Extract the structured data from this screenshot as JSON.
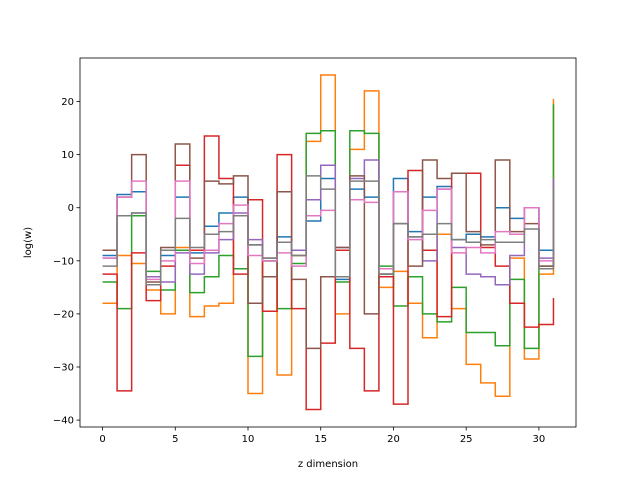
{
  "chart_data": {
    "type": "line",
    "step": "post",
    "title": "",
    "xlabel": "z dimension",
    "ylabel": "log(w)",
    "xlim": [
      -1.55,
      32.55
    ],
    "ylim": [
      -41.3,
      28.2
    ],
    "xticks": [
      0,
      5,
      10,
      15,
      20,
      25,
      30
    ],
    "yticks": [
      -40,
      -30,
      -20,
      -10,
      0,
      10,
      20
    ],
    "grid": false,
    "legend": "none",
    "x": [
      0,
      1,
      2,
      3,
      4,
      5,
      6,
      7,
      8,
      9,
      10,
      11,
      12,
      13,
      14,
      15,
      16,
      17,
      18,
      19,
      20,
      21,
      22,
      23,
      24,
      25,
      26,
      27,
      28,
      29,
      30,
      31
    ],
    "series": [
      {
        "color": "#1f77b4",
        "values": [
          -9,
          2.5,
          3,
          -13,
          -9,
          2,
          -8.5,
          -3.5,
          -1,
          2,
          -7,
          -10,
          -5.5,
          -9,
          -2.5,
          5.5,
          -13.5,
          3.5,
          2,
          -12.5,
          5.5,
          -4.5,
          2,
          4,
          -6,
          -5,
          -5.5,
          0,
          -2,
          0,
          -8,
          2
        ]
      },
      {
        "color": "#ff7f0e",
        "values": [
          -18,
          -9,
          -10.5,
          -15.5,
          -20,
          -7.5,
          -20.5,
          -18.5,
          -18,
          -1.5,
          -35,
          -9.5,
          -31.5,
          -9,
          12.5,
          25,
          -20,
          11,
          22,
          -15,
          -12,
          -18,
          -24.5,
          -5,
          -19,
          -29.5,
          -33,
          -35.5,
          -9.5,
          -28.5,
          -12.5,
          20.5
        ]
      },
      {
        "color": "#2ca02c",
        "values": [
          -14,
          -19,
          -1.5,
          -12,
          -15.5,
          -8,
          -16,
          -13,
          -9,
          -11.5,
          -28,
          -10,
          -19,
          -10.5,
          14,
          14.5,
          -14,
          14.5,
          14,
          -11,
          -18.5,
          -13,
          -20,
          -21.5,
          -15,
          -23.5,
          -23.5,
          -26,
          -13.5,
          -26.5,
          -11,
          19.5
        ]
      },
      {
        "color": "#d62728",
        "values": [
          -12.5,
          -34.5,
          -8.5,
          -17.5,
          -11,
          8,
          -8,
          13.5,
          5.5,
          -12.5,
          1.5,
          -19.5,
          10,
          -19,
          -38,
          -25.5,
          -8,
          -26.5,
          -34.5,
          -13,
          -37,
          7,
          -8,
          -20.5,
          6.5,
          6.5,
          -7.5,
          -11,
          -18,
          -22.5,
          -22,
          -17
        ]
      },
      {
        "color": "#9467bd",
        "values": [
          -9.5,
          -1.5,
          -1,
          -13,
          -14,
          -8.5,
          -12.5,
          -8.5,
          -6,
          -1,
          -6,
          -9.5,
          -6.5,
          -8,
          1.5,
          8,
          -7.5,
          5.5,
          9,
          -11.5,
          3,
          -5.5,
          -10,
          3.5,
          -7.5,
          -12.5,
          -13,
          -14.5,
          -9,
          0,
          -9.5,
          5.5
        ]
      },
      {
        "color": "#8c564b",
        "values": [
          -8,
          2,
          10,
          -14,
          -7.5,
          12,
          -9.5,
          5,
          4.5,
          6,
          -18,
          -13,
          3,
          -13.5,
          -26.5,
          -13,
          -7.5,
          6,
          -20,
          -12.5,
          -3,
          -11,
          9,
          5.5,
          6.5,
          -4.5,
          -7,
          9,
          -4.5,
          -3,
          -11,
          -7.5
        ]
      },
      {
        "color": "#e377c2",
        "values": [
          -9.5,
          2,
          5,
          -13.5,
          -10,
          5,
          -10.5,
          -8,
          -3,
          0.5,
          -9,
          -10,
          -8.5,
          -11,
          -1.5,
          -0.5,
          -13,
          1.5,
          1,
          -11.5,
          3,
          -6,
          -0.5,
          3.5,
          -8.5,
          -7.5,
          -8.5,
          -4.5,
          -5,
          0,
          -10,
          2
        ]
      },
      {
        "color": "#7f7f7f",
        "values": [
          -11,
          -1.5,
          -1,
          -14.5,
          -8,
          -2,
          -7.5,
          -5,
          -4.5,
          -1.5,
          -7,
          -9.5,
          -6.5,
          -9,
          6,
          3.5,
          -13,
          5,
          5,
          -12.5,
          -3,
          -5.5,
          -5,
          -3,
          -6,
          -6.5,
          -6,
          -6.5,
          -6.5,
          -4,
          -11.5,
          3.5
        ]
      }
    ]
  }
}
